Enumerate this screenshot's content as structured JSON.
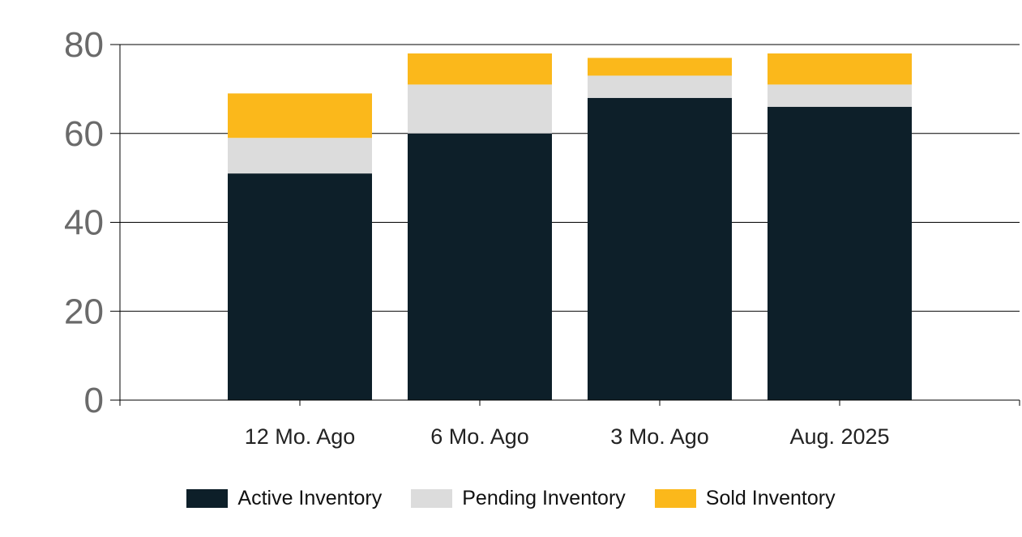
{
  "chart_data": {
    "type": "bar",
    "stacked": true,
    "categories": [
      "12 Mo. Ago",
      "6 Mo. Ago",
      "3 Mo. Ago",
      "Aug. 2025"
    ],
    "series": [
      {
        "name": "Active Inventory",
        "color": "#0d1f29",
        "values": [
          51,
          60,
          68,
          66
        ]
      },
      {
        "name": "Pending Inventory",
        "color": "#dcdcdc",
        "values": [
          8,
          11,
          5,
          5
        ]
      },
      {
        "name": "Sold Inventory",
        "color": "#fbb81b",
        "values": [
          10,
          7,
          4,
          7
        ]
      }
    ],
    "ylim": [
      0,
      80
    ],
    "yticks": [
      "0",
      "20",
      "40",
      "60",
      "80"
    ],
    "grid": true,
    "legend_position": "bottom"
  }
}
